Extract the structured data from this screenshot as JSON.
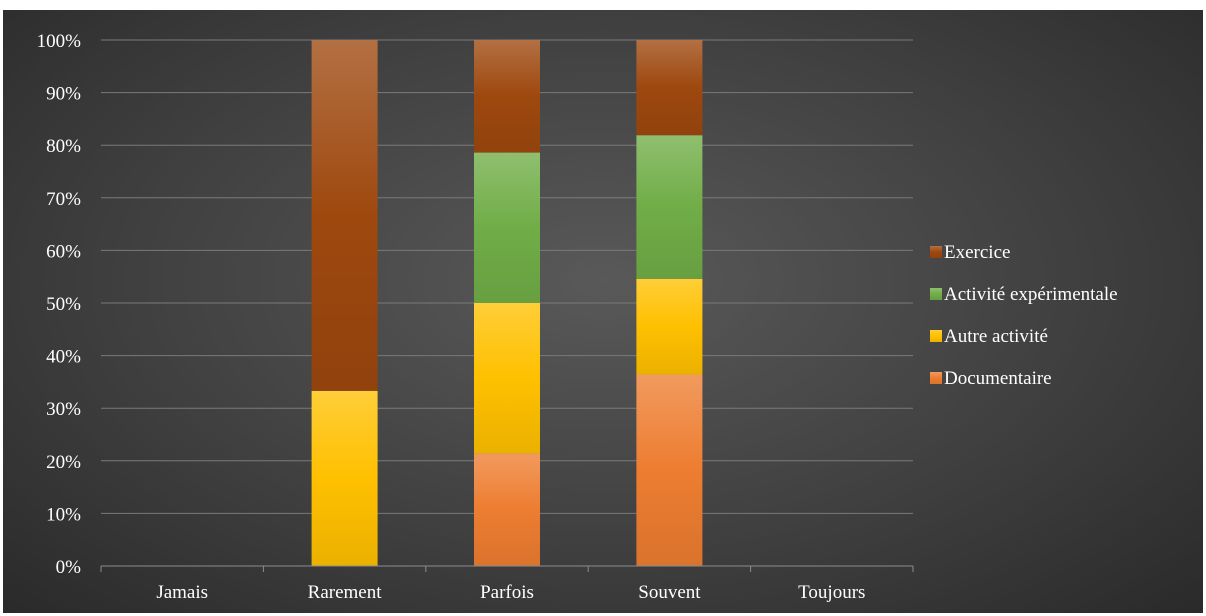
{
  "chart_data": {
    "type": "bar",
    "stacked": true,
    "percent": true,
    "categories": [
      "Jamais",
      "Rarement",
      "Parfois",
      "Souvent",
      "Toujours"
    ],
    "series": [
      {
        "name": "Documentaire",
        "values": [
          0,
          0,
          21.4,
          36.4,
          0
        ],
        "color": "#ed7d31"
      },
      {
        "name": "Autre activité",
        "values": [
          0,
          33.3,
          28.6,
          18.2,
          0
        ],
        "color": "#ffc000"
      },
      {
        "name": "Activité expérimentale",
        "values": [
          0,
          0,
          28.6,
          27.3,
          0
        ],
        "color": "#70ad47"
      },
      {
        "name": "Exercice",
        "values": [
          0,
          66.7,
          21.4,
          18.1,
          0
        ],
        "color": "#9e480e"
      }
    ],
    "ylim": [
      0,
      100
    ],
    "y_ticks": [
      "0%",
      "10%",
      "20%",
      "30%",
      "40%",
      "50%",
      "60%",
      "70%",
      "80%",
      "90%",
      "100%"
    ],
    "grid": true,
    "legend_position": "right",
    "legend_order": [
      "Exercice",
      "Activité expérimentale",
      "Autre activité",
      "Documentaire"
    ],
    "background": "#404040"
  }
}
